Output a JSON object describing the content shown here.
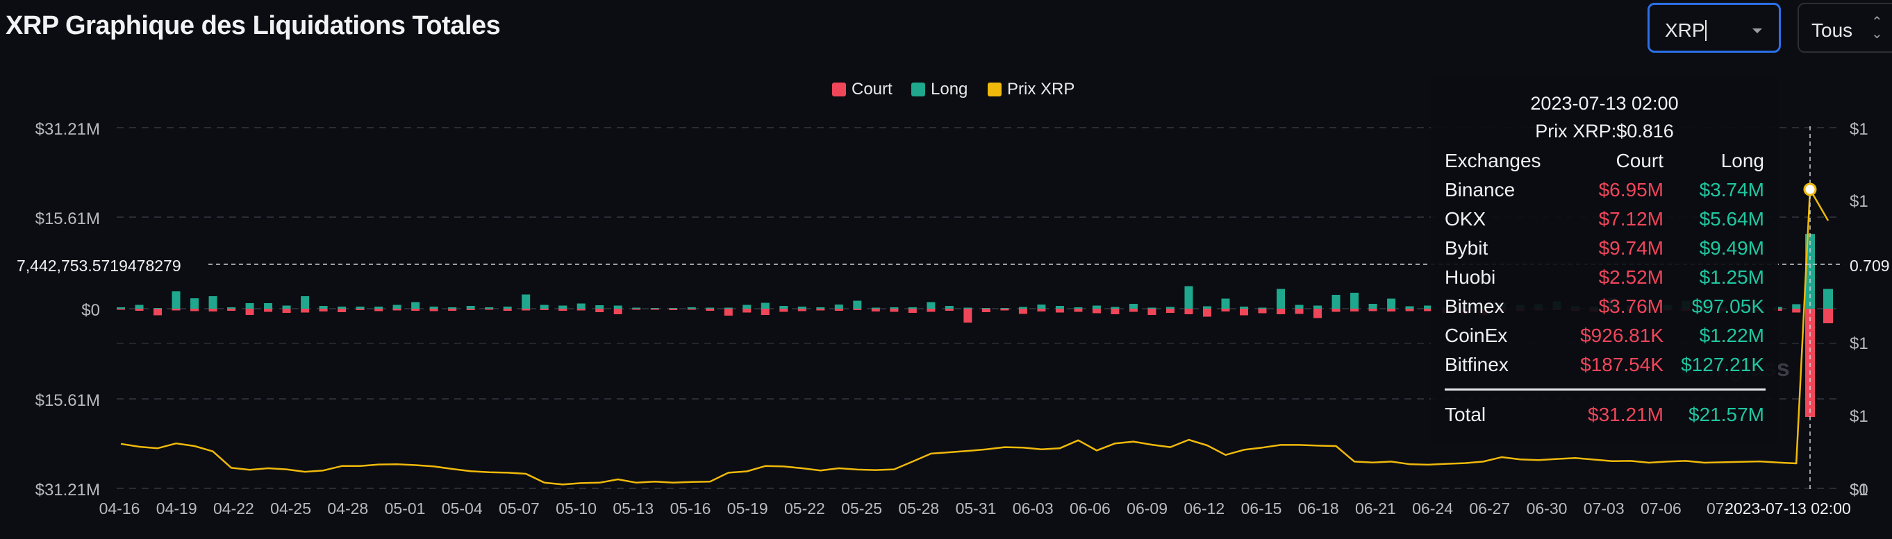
{
  "title": "XRP Graphique des Liquidations Totales",
  "controls": {
    "coin_select": "XRP",
    "range_select": "Tous",
    "coin_arrow_icon": "chevron-down-icon",
    "range_arrow_icon": "up-down-chevron-icon"
  },
  "colors": {
    "short": "#f0465a",
    "long": "#1fa88e",
    "price": "#f0b90b",
    "background": "#0b0d12",
    "grid": "#2a2d35",
    "accent": "#2d6fe8"
  },
  "watermark": "coinglass",
  "crosshair": {
    "left_label": "7,442,753.5719478279",
    "right_label": "0.709"
  },
  "tooltip": {
    "datetime": "2023-07-13 02:00",
    "price": "Prix XRP:$0.816",
    "headers": [
      "Exchanges",
      "Court",
      "Long"
    ],
    "rows": [
      {
        "exchange": "Binance",
        "short": "$6.95M",
        "long": "$3.74M"
      },
      {
        "exchange": "OKX",
        "short": "$7.12M",
        "long": "$5.64M"
      },
      {
        "exchange": "Bybit",
        "short": "$9.74M",
        "long": "$9.49M"
      },
      {
        "exchange": "Huobi",
        "short": "$2.52M",
        "long": "$1.25M"
      },
      {
        "exchange": "Bitmex",
        "short": "$3.76M",
        "long": "$97.05K"
      },
      {
        "exchange": "CoinEx",
        "short": "$926.81K",
        "long": "$1.22M"
      },
      {
        "exchange": "Bitfinex",
        "short": "$187.54K",
        "long": "$127.21K"
      }
    ],
    "total": {
      "label": "Total",
      "short": "$31.21M",
      "long": "$21.57M"
    }
  },
  "chart_data": {
    "type": "bar",
    "legend": [
      {
        "name": "Court",
        "color": "#f0465a"
      },
      {
        "name": "Long",
        "color": "#1fa88e"
      },
      {
        "name": "Prix XRP",
        "color": "#f0b90b"
      }
    ],
    "legend_position": "top-center",
    "left_axis": {
      "ticks": [
        "$31.21M",
        "$15.61M",
        "$0",
        "$15.61M",
        "$31.21M"
      ],
      "values": [
        31.21,
        15.61,
        0,
        -15.61,
        -31.21
      ],
      "range": [
        -31.21,
        31.21
      ]
    },
    "right_axis": {
      "ticks": [
        "$1",
        "$1",
        "$1",
        "$1",
        "$1",
        "$0"
      ]
    },
    "x_ticks": [
      "04-16",
      "04-19",
      "04-22",
      "04-25",
      "04-28",
      "05-01",
      "05-04",
      "05-07",
      "05-10",
      "05-13",
      "05-16",
      "05-19",
      "05-22",
      "05-25",
      "05-28",
      "05-31",
      "06-03",
      "06-06",
      "06-09",
      "06-12",
      "06-15",
      "06-18",
      "06-21",
      "06-24",
      "06-27",
      "06-30",
      "07-03",
      "07-06",
      "07-",
      "2023-07-13 02:00"
    ],
    "grid": "horizontal-dashed",
    "long_values": [
      0.4,
      1.1,
      0.2,
      5.0,
      3.0,
      3.6,
      0.4,
      1.6,
      1.6,
      0.9,
      3.6,
      0.8,
      0.6,
      0.6,
      0.6,
      1.1,
      1.9,
      0.6,
      0.4,
      0.8,
      0.4,
      0.6,
      4.1,
      1.1,
      0.9,
      1.5,
      1.0,
      0.9,
      0.3,
      0.2,
      0.2,
      0.4,
      0.3,
      0.3,
      1.1,
      1.7,
      0.8,
      0.6,
      0.4,
      1.2,
      2.3,
      0.3,
      0.4,
      0.4,
      1.9,
      0.8,
      0.3,
      0.2,
      0.2,
      0.5,
      1.2,
      0.8,
      0.4,
      0.9,
      0.5,
      1.4,
      0.3,
      0.5,
      6.5,
      0.7,
      2.9,
      0.6,
      0.3,
      5.7,
      1.1,
      0.9,
      4.0,
      4.6,
      1.4,
      2.9,
      0.7,
      0.9,
      0.4,
      0.5,
      0.8,
      1.6,
      1.1,
      1.3,
      2.1,
      0.7,
      0.6,
      3.0,
      0.9,
      0.8,
      1.1,
      2.3,
      1.9,
      0.4,
      0.9,
      0.6,
      0.5,
      1.3,
      21.57,
      5.7
    ],
    "short_values": [
      0.3,
      0.6,
      1.9,
      0.5,
      0.7,
      0.8,
      0.6,
      1.8,
      0.9,
      1.2,
      1.1,
      0.8,
      1.0,
      0.4,
      0.7,
      0.5,
      0.6,
      0.7,
      0.6,
      0.4,
      0.3,
      0.6,
      0.5,
      0.4,
      0.6,
      0.5,
      1.0,
      1.6,
      0.3,
      0.3,
      0.4,
      0.3,
      0.6,
      2.0,
      1.1,
      1.8,
      0.9,
      0.7,
      0.5,
      0.6,
      0.4,
      0.8,
      0.9,
      1.2,
      0.9,
      0.6,
      4.0,
      1.0,
      0.5,
      1.5,
      0.8,
      1.1,
      0.9,
      1.3,
      1.6,
      0.9,
      1.8,
      1.2,
      1.6,
      2.3,
      0.8,
      1.9,
      1.3,
      1.6,
      1.5,
      2.7,
      0.9,
      0.8,
      0.7,
      0.8,
      0.7,
      0.7,
      1.3,
      1.6,
      1.8,
      0.8,
      0.6,
      0.5,
      0.4,
      0.6,
      0.9,
      0.4,
      0.7,
      0.6,
      0.5,
      0.6,
      0.5,
      0.7,
      0.6,
      0.8,
      0.6,
      1.1,
      31.21,
      4.2
    ],
    "price_values": [
      0.36,
      0.347,
      0.34,
      0.362,
      0.35,
      0.326,
      0.252,
      0.243,
      0.25,
      0.245,
      0.234,
      0.24,
      0.26,
      0.26,
      0.267,
      0.268,
      0.264,
      0.258,
      0.247,
      0.237,
      0.232,
      0.23,
      0.225,
      0.185,
      0.177,
      0.183,
      0.185,
      0.2,
      0.185,
      0.19,
      0.185,
      0.188,
      0.19,
      0.23,
      0.236,
      0.26,
      0.258,
      0.25,
      0.24,
      0.25,
      0.244,
      0.242,
      0.245,
      0.28,
      0.316,
      0.322,
      0.328,
      0.335,
      0.345,
      0.343,
      0.335,
      0.34,
      0.376,
      0.33,
      0.362,
      0.37,
      0.356,
      0.345,
      0.378,
      0.353,
      0.31,
      0.333,
      0.343,
      0.355,
      0.355,
      0.352,
      0.35,
      0.28,
      0.276,
      0.28,
      0.268,
      0.266,
      0.27,
      0.273,
      0.28,
      0.3,
      0.29,
      0.287,
      0.292,
      0.296,
      0.289,
      0.282,
      0.283,
      0.275,
      0.28,
      0.283,
      0.275,
      0.277,
      0.279,
      0.281,
      0.276,
      0.272,
      0.816,
      0.709
    ],
    "hover_index": 92
  }
}
